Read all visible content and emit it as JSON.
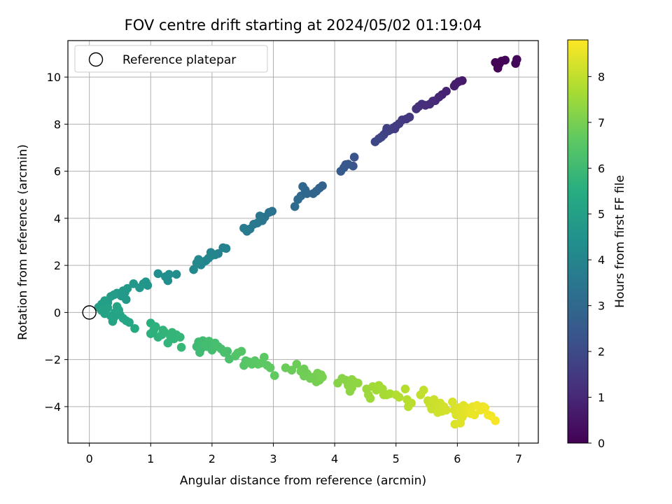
{
  "chart_data": {
    "type": "scatter",
    "title": "FOV centre drift starting at 2024/05/02 01:19:04",
    "xlabel": "Angular distance from reference (arcmin)",
    "ylabel": "Rotation from reference (arcmin)",
    "xlim": [
      -0.35,
      7.32
    ],
    "ylim": [
      -5.55,
      11.55
    ],
    "xticks": [
      0,
      1,
      2,
      3,
      4,
      5,
      6,
      7
    ],
    "yticks": [
      -4,
      -2,
      0,
      2,
      4,
      6,
      8,
      10
    ],
    "grid": true,
    "legend": {
      "position": "top-left",
      "entries": [
        "Reference platepar"
      ]
    },
    "reference_point": {
      "name": "Reference platepar",
      "x": 0,
      "y": 0
    },
    "colorbar": {
      "label": "Hours from first FF file",
      "range": [
        0,
        8.8
      ],
      "ticks": [
        0,
        1,
        2,
        3,
        4,
        5,
        6,
        7,
        8
      ],
      "colormap": "viridis"
    },
    "series": [
      {
        "marker": "filled-circle",
        "points": [
          [
            6.62,
            10.62,
            0.05
          ],
          [
            6.68,
            10.55,
            0.08
          ],
          [
            6.66,
            10.38,
            0.1
          ],
          [
            6.78,
            10.72,
            0.12
          ],
          [
            6.95,
            10.58,
            0.14
          ],
          [
            6.97,
            10.75,
            0.16
          ],
          [
            6.72,
            10.68,
            0.06
          ],
          [
            6.08,
            9.85,
            0.65
          ],
          [
            6.02,
            9.8,
            0.7
          ],
          [
            5.97,
            9.7,
            0.72
          ],
          [
            5.95,
            9.62,
            0.74
          ],
          [
            5.82,
            9.4,
            0.85
          ],
          [
            5.75,
            9.25,
            0.88
          ],
          [
            5.7,
            9.15,
            0.95
          ],
          [
            5.64,
            9.0,
            1.0
          ],
          [
            5.6,
            8.98,
            1.05
          ],
          [
            5.55,
            8.85,
            1.1
          ],
          [
            5.48,
            8.8,
            1.15
          ],
          [
            5.42,
            8.85,
            1.18
          ],
          [
            5.37,
            8.75,
            1.2
          ],
          [
            5.33,
            8.65,
            1.25
          ],
          [
            5.22,
            8.3,
            1.4
          ],
          [
            5.17,
            8.22,
            1.45
          ],
          [
            5.1,
            8.18,
            1.5
          ],
          [
            5.05,
            8.02,
            1.55
          ],
          [
            5.0,
            7.92,
            1.58
          ],
          [
            4.96,
            7.85,
            1.62
          ],
          [
            4.92,
            7.78,
            1.65
          ],
          [
            4.88,
            7.72,
            1.7
          ],
          [
            4.84,
            7.68,
            1.72
          ],
          [
            4.8,
            7.55,
            1.76
          ],
          [
            4.76,
            7.45,
            1.8
          ],
          [
            4.72,
            7.38,
            1.84
          ],
          [
            4.66,
            7.25,
            1.9
          ],
          [
            4.98,
            7.8,
            1.6
          ],
          [
            4.85,
            7.82,
            1.68
          ],
          [
            4.32,
            6.6,
            2.3
          ],
          [
            4.3,
            6.22,
            2.35
          ],
          [
            4.22,
            6.3,
            2.4
          ],
          [
            4.18,
            6.28,
            2.42
          ],
          [
            4.15,
            6.15,
            2.45
          ],
          [
            4.1,
            6.0,
            2.5
          ],
          [
            3.8,
            5.38,
            2.8
          ],
          [
            3.75,
            5.28,
            2.82
          ],
          [
            3.7,
            5.15,
            2.86
          ],
          [
            3.65,
            5.05,
            2.9
          ],
          [
            3.55,
            5.05,
            2.95
          ],
          [
            3.48,
            5.35,
            2.98
          ],
          [
            3.52,
            5.2,
            3.0
          ],
          [
            3.45,
            4.95,
            3.02
          ],
          [
            3.4,
            4.8,
            3.05
          ],
          [
            3.35,
            4.5,
            3.1
          ],
          [
            2.98,
            4.3,
            3.35
          ],
          [
            2.93,
            4.25,
            3.38
          ],
          [
            2.86,
            4.05,
            3.42
          ],
          [
            2.82,
            3.9,
            3.45
          ],
          [
            2.78,
            4.1,
            3.48
          ],
          [
            2.74,
            3.8,
            3.52
          ],
          [
            2.68,
            3.75,
            3.55
          ],
          [
            2.62,
            3.55,
            3.6
          ],
          [
            2.57,
            3.45,
            3.62
          ],
          [
            2.52,
            3.58,
            3.65
          ],
          [
            2.23,
            2.72,
            3.9
          ],
          [
            2.18,
            2.75,
            3.92
          ],
          [
            2.1,
            2.5,
            3.95
          ],
          [
            2.05,
            2.45,
            3.98
          ],
          [
            1.98,
            2.55,
            4.0
          ],
          [
            1.94,
            2.3,
            4.02
          ],
          [
            1.9,
            2.2,
            4.04
          ],
          [
            1.86,
            2.15,
            4.06
          ],
          [
            1.82,
            2.02,
            4.08
          ],
          [
            1.78,
            2.25,
            4.1
          ],
          [
            1.75,
            2.1,
            4.12
          ],
          [
            1.7,
            1.82,
            4.15
          ],
          [
            1.98,
            2.4,
            4.0
          ],
          [
            1.42,
            1.62,
            4.3
          ],
          [
            1.3,
            1.62,
            4.32
          ],
          [
            1.28,
            1.35,
            4.34
          ],
          [
            1.24,
            1.52,
            4.36
          ],
          [
            1.12,
            1.65,
            4.38
          ],
          [
            0.95,
            1.15,
            4.6
          ],
          [
            0.92,
            1.3,
            4.62
          ],
          [
            0.88,
            1.22,
            4.64
          ],
          [
            0.82,
            1.05,
            4.66
          ],
          [
            0.72,
            1.22,
            4.7
          ],
          [
            0.62,
            1.02,
            4.74
          ],
          [
            0.58,
            0.85,
            4.76
          ],
          [
            0.55,
            0.92,
            4.78
          ],
          [
            0.5,
            0.75,
            4.8
          ],
          [
            0.45,
            0.82,
            4.82
          ],
          [
            0.4,
            0.75,
            4.84
          ],
          [
            0.35,
            0.68,
            4.86
          ],
          [
            0.3,
            0.42,
            4.9
          ],
          [
            0.25,
            0.5,
            4.92
          ],
          [
            0.2,
            0.35,
            4.94
          ],
          [
            0.15,
            0.22,
            4.96
          ],
          [
            0.6,
            0.55,
            4.75
          ],
          [
            0.52,
            0.7,
            4.78
          ],
          [
            0.2,
            0.08,
            5.05
          ],
          [
            0.25,
            -0.05,
            5.08
          ],
          [
            0.3,
            0.2,
            5.1
          ],
          [
            0.35,
            -0.15,
            5.12
          ],
          [
            0.38,
            -0.38,
            5.14
          ],
          [
            0.42,
            0.0,
            5.16
          ],
          [
            0.45,
            0.25,
            5.18
          ],
          [
            0.5,
            -0.1,
            5.2
          ],
          [
            0.55,
            -0.25,
            5.22
          ],
          [
            0.6,
            -0.35,
            5.24
          ],
          [
            0.65,
            -0.42,
            5.26
          ],
          [
            0.74,
            -0.68,
            5.3
          ],
          [
            0.48,
            0.1,
            5.19
          ],
          [
            0.4,
            -0.22,
            5.15
          ],
          [
            1.0,
            -0.45,
            5.6
          ],
          [
            1.0,
            -0.9,
            5.62
          ],
          [
            1.05,
            -0.75,
            5.64
          ],
          [
            1.08,
            -0.6,
            5.66
          ],
          [
            1.12,
            -1.05,
            5.68
          ],
          [
            1.18,
            -0.95,
            5.7
          ],
          [
            1.2,
            -0.75,
            5.72
          ],
          [
            1.22,
            -0.82,
            5.74
          ],
          [
            1.28,
            -1.3,
            5.76
          ],
          [
            1.32,
            -1.0,
            5.78
          ],
          [
            1.38,
            -1.12,
            5.8
          ],
          [
            1.42,
            -0.95,
            5.82
          ],
          [
            1.48,
            -1.05,
            5.84
          ],
          [
            1.5,
            -1.48,
            5.86
          ],
          [
            1.35,
            -0.85,
            5.79
          ],
          [
            1.75,
            -1.45,
            6.0
          ],
          [
            1.78,
            -1.25,
            6.02
          ],
          [
            1.82,
            -1.55,
            6.04
          ],
          [
            1.85,
            -1.2,
            6.06
          ],
          [
            1.88,
            -1.35,
            6.08
          ],
          [
            1.92,
            -1.45,
            6.1
          ],
          [
            1.95,
            -1.22,
            6.12
          ],
          [
            2.0,
            -1.6,
            6.14
          ],
          [
            2.05,
            -1.3,
            6.16
          ],
          [
            2.1,
            -1.45,
            6.18
          ],
          [
            2.15,
            -1.55,
            6.2
          ],
          [
            2.2,
            -1.7,
            6.22
          ],
          [
            2.25,
            -1.65,
            6.24
          ],
          [
            2.28,
            -1.98,
            6.26
          ],
          [
            1.8,
            -1.7,
            6.03
          ],
          [
            2.38,
            -1.85,
            6.4
          ],
          [
            2.42,
            -1.72,
            6.42
          ],
          [
            2.48,
            -1.65,
            6.44
          ],
          [
            2.52,
            -2.25,
            6.46
          ],
          [
            2.55,
            -2.05,
            6.48
          ],
          [
            2.6,
            -2.1,
            6.5
          ],
          [
            2.65,
            -2.2,
            6.52
          ],
          [
            2.7,
            -2.05,
            6.54
          ],
          [
            2.75,
            -2.2,
            6.56
          ],
          [
            2.8,
            -2.15,
            6.58
          ],
          [
            2.85,
            -1.9,
            6.6
          ],
          [
            2.9,
            -2.25,
            6.62
          ],
          [
            2.95,
            -2.35,
            6.64
          ],
          [
            3.02,
            -2.68,
            6.66
          ],
          [
            3.2,
            -2.35,
            6.8
          ],
          [
            3.3,
            -2.45,
            6.82
          ],
          [
            3.38,
            -2.2,
            6.84
          ],
          [
            3.45,
            -2.5,
            6.86
          ],
          [
            3.5,
            -2.7,
            6.88
          ],
          [
            3.55,
            -2.6,
            6.9
          ],
          [
            3.6,
            -2.8,
            6.92
          ],
          [
            3.65,
            -2.75,
            6.94
          ],
          [
            3.7,
            -2.95,
            6.96
          ],
          [
            3.72,
            -2.58,
            6.97
          ],
          [
            3.75,
            -2.88,
            6.98
          ],
          [
            3.78,
            -2.65,
            7.0
          ],
          [
            3.8,
            -2.75,
            7.02
          ],
          [
            3.5,
            -2.4,
            6.87
          ],
          [
            4.05,
            -3.0,
            7.2
          ],
          [
            4.12,
            -2.8,
            7.22
          ],
          [
            4.18,
            -2.88,
            7.24
          ],
          [
            4.22,
            -3.1,
            7.26
          ],
          [
            4.25,
            -3.35,
            7.28
          ],
          [
            4.28,
            -2.85,
            7.3
          ],
          [
            4.32,
            -2.95,
            7.32
          ],
          [
            4.38,
            -3.0,
            7.34
          ],
          [
            4.28,
            -3.2,
            7.3
          ],
          [
            4.52,
            -3.25,
            7.5
          ],
          [
            4.55,
            -3.5,
            7.52
          ],
          [
            4.58,
            -3.65,
            7.54
          ],
          [
            4.62,
            -3.15,
            7.56
          ],
          [
            4.68,
            -3.3,
            7.58
          ],
          [
            4.72,
            -3.1,
            7.6
          ],
          [
            4.78,
            -3.25,
            7.62
          ],
          [
            4.8,
            -3.5,
            7.64
          ],
          [
            4.85,
            -3.5,
            7.66
          ],
          [
            4.9,
            -3.45,
            7.68
          ],
          [
            5.0,
            -3.5,
            7.8
          ],
          [
            5.05,
            -3.6,
            7.82
          ],
          [
            5.15,
            -3.25,
            7.84
          ],
          [
            5.18,
            -3.7,
            7.86
          ],
          [
            5.2,
            -4.0,
            7.88
          ],
          [
            5.25,
            -3.85,
            7.9
          ],
          [
            5.4,
            -3.5,
            8.0
          ],
          [
            5.45,
            -3.3,
            8.02
          ],
          [
            5.52,
            -3.75,
            8.04
          ],
          [
            5.55,
            -3.9,
            8.06
          ],
          [
            5.58,
            -4.1,
            8.08
          ],
          [
            5.6,
            -3.95,
            8.1
          ],
          [
            5.62,
            -3.7,
            8.12
          ],
          [
            5.65,
            -4.05,
            8.14
          ],
          [
            5.68,
            -4.25,
            8.16
          ],
          [
            5.72,
            -3.85,
            8.18
          ],
          [
            5.75,
            -4.2,
            8.2
          ],
          [
            5.78,
            -4.0,
            8.22
          ],
          [
            5.82,
            -4.15,
            8.24
          ],
          [
            5.92,
            -3.8,
            8.3
          ],
          [
            5.95,
            -4.15,
            8.32
          ],
          [
            5.96,
            -4.75,
            8.33
          ],
          [
            5.98,
            -4.35,
            8.34
          ],
          [
            6.02,
            -4.05,
            8.36
          ],
          [
            6.05,
            -4.2,
            8.38
          ],
          [
            6.08,
            -4.45,
            8.4
          ],
          [
            6.1,
            -3.95,
            8.42
          ],
          [
            6.12,
            -4.3,
            8.44
          ],
          [
            6.15,
            -4.05,
            8.46
          ],
          [
            6.18,
            -4.25,
            8.48
          ],
          [
            6.2,
            -4.1,
            8.5
          ],
          [
            6.22,
            -4.3,
            8.52
          ],
          [
            6.25,
            -4.0,
            8.54
          ],
          [
            6.28,
            -4.35,
            8.56
          ],
          [
            6.32,
            -3.95,
            8.58
          ],
          [
            6.38,
            -4.15,
            8.6
          ],
          [
            6.42,
            -4.0,
            8.62
          ],
          [
            6.45,
            -4.05,
            8.64
          ],
          [
            6.5,
            -4.35,
            8.66
          ],
          [
            6.55,
            -4.4,
            8.68
          ],
          [
            6.62,
            -4.6,
            8.72
          ],
          [
            6.05,
            -4.7,
            8.39
          ]
        ]
      }
    ]
  }
}
